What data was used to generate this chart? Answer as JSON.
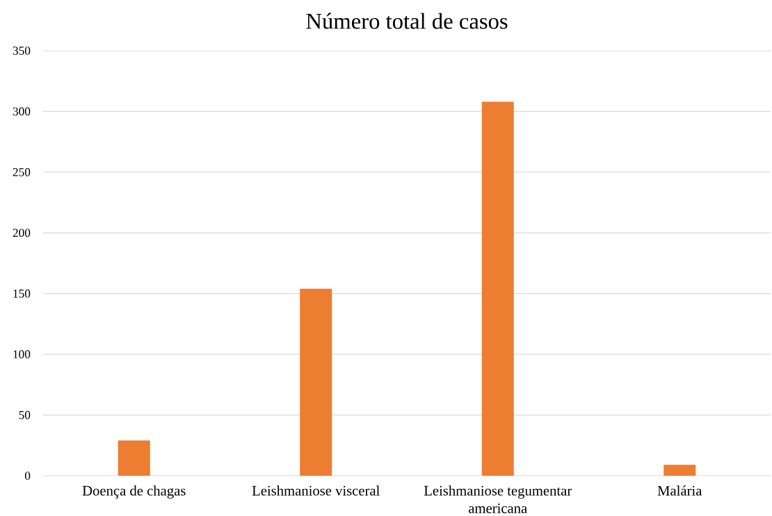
{
  "chart_data": {
    "type": "bar",
    "title": "Número total de casos",
    "categories": [
      "Doença de chagas",
      "Leishmaniose visceral",
      "Leishmaniose tegumentar americana",
      "Malária"
    ],
    "values": [
      29,
      154,
      308,
      9
    ],
    "color": "#ed7d31",
    "ylim": [
      0,
      350
    ],
    "yticks": [
      0,
      50,
      100,
      150,
      200,
      250,
      300,
      350
    ],
    "grid": "y"
  }
}
